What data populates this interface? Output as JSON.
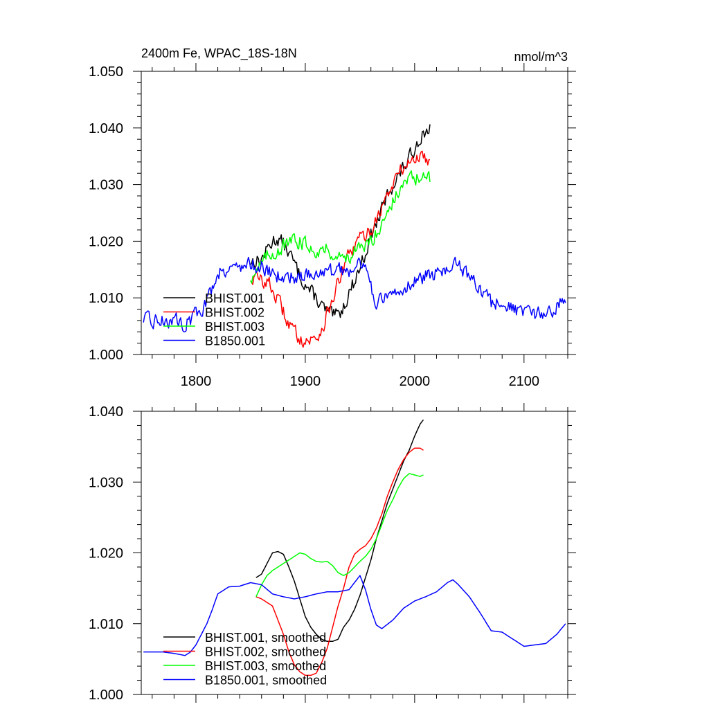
{
  "chart_data": [
    {
      "type": "line",
      "title": "2400m Fe, WPAC_18S-18N",
      "units_label": "nmol/m^3",
      "xlim": [
        1750,
        2140
      ],
      "ylim": [
        1.0,
        1.05
      ],
      "x_ticks": [
        1800,
        1900,
        2000,
        2100
      ],
      "x_tick_labels": [
        "1800",
        "1900",
        "2000",
        "2100"
      ],
      "y_ticks": [
        1.0,
        1.01,
        1.02,
        1.03,
        1.04,
        1.05
      ],
      "y_tick_labels": [
        "1.000",
        "1.010",
        "1.020",
        "1.030",
        "1.040",
        "1.050"
      ],
      "grid": false,
      "legend_position": "bottom-left",
      "series": [
        {
          "name": "BHIST.001",
          "color": "#000000",
          "noise": 0.0012,
          "x": [
            1850,
            1855,
            1860,
            1865,
            1870,
            1875,
            1880,
            1885,
            1890,
            1895,
            1900,
            1905,
            1910,
            1915,
            1920,
            1925,
            1930,
            1935,
            1940,
            1945,
            1950,
            1955,
            1960,
            1965,
            1970,
            1975,
            1980,
            1985,
            1990,
            1995,
            2000,
            2005,
            2010,
            2014
          ],
          "y": [
            1.0165,
            1.0165,
            1.0168,
            1.0185,
            1.02,
            1.0205,
            1.0195,
            1.018,
            1.016,
            1.014,
            1.0125,
            1.011,
            1.01,
            1.0085,
            1.0075,
            1.0068,
            1.0068,
            1.0085,
            1.011,
            1.013,
            1.0155,
            1.018,
            1.021,
            1.023,
            1.0255,
            1.028,
            1.03,
            1.0315,
            1.033,
            1.0345,
            1.0365,
            1.0385,
            1.0395,
            1.04
          ]
        },
        {
          "name": "BHIST.002",
          "color": "#ff0000",
          "noise": 0.0012,
          "x": [
            1850,
            1855,
            1860,
            1865,
            1870,
            1875,
            1880,
            1885,
            1890,
            1895,
            1900,
            1905,
            1910,
            1915,
            1920,
            1925,
            1930,
            1935,
            1940,
            1945,
            1950,
            1955,
            1960,
            1965,
            1970,
            1975,
            1980,
            1985,
            1990,
            1995,
            2000,
            2005,
            2010,
            2014
          ],
          "y": [
            1.0135,
            1.0135,
            1.013,
            1.013,
            1.0115,
            1.0095,
            1.0075,
            1.0055,
            1.004,
            1.003,
            1.0025,
            1.0025,
            1.003,
            1.0045,
            1.007,
            1.01,
            1.0125,
            1.015,
            1.0175,
            1.019,
            1.0205,
            1.021,
            1.022,
            1.024,
            1.026,
            1.028,
            1.03,
            1.032,
            1.033,
            1.034,
            1.0345,
            1.035,
            1.0348,
            1.0345
          ]
        },
        {
          "name": "BHIST.003",
          "color": "#00ff00",
          "noise": 0.0012,
          "x": [
            1850,
            1855,
            1860,
            1865,
            1870,
            1875,
            1880,
            1885,
            1890,
            1895,
            1900,
            1905,
            1910,
            1915,
            1920,
            1925,
            1930,
            1935,
            1940,
            1945,
            1950,
            1955,
            1960,
            1965,
            1970,
            1975,
            1980,
            1985,
            1990,
            1995,
            2000,
            2005,
            2010,
            2014
          ],
          "y": [
            1.0135,
            1.015,
            1.016,
            1.0172,
            1.018,
            1.0185,
            1.019,
            1.0195,
            1.02,
            1.02,
            1.0195,
            1.019,
            1.0185,
            1.0185,
            1.0185,
            1.018,
            1.0172,
            1.017,
            1.0175,
            1.018,
            1.0185,
            1.019,
            1.02,
            1.0215,
            1.0235,
            1.0255,
            1.027,
            1.0285,
            1.03,
            1.031,
            1.0312,
            1.031,
            1.0308,
            1.031
          ]
        },
        {
          "name": "B1850.001",
          "color": "#0000ff",
          "noise": 0.0012,
          "x": [
            1752,
            1760,
            1770,
            1780,
            1790,
            1800,
            1805,
            1810,
            1815,
            1820,
            1830,
            1840,
            1850,
            1860,
            1870,
            1875,
            1880,
            1890,
            1900,
            1910,
            1920,
            1930,
            1940,
            1945,
            1950,
            1955,
            1960,
            1965,
            1970,
            1980,
            1990,
            2000,
            2010,
            2020,
            2030,
            2035,
            2040,
            2050,
            2060,
            2070,
            2080,
            2090,
            2100,
            2110,
            2120,
            2130,
            2138
          ],
          "y": [
            1.006,
            1.006,
            1.006,
            1.006,
            1.0055,
            1.007,
            1.008,
            1.0095,
            1.012,
            1.0145,
            1.0155,
            1.0155,
            1.016,
            1.0155,
            1.014,
            1.014,
            1.0135,
            1.0138,
            1.014,
            1.0145,
            1.0145,
            1.0147,
            1.015,
            1.016,
            1.0168,
            1.0145,
            1.012,
            1.0095,
            1.0093,
            1.0105,
            1.012,
            1.013,
            1.0138,
            1.0143,
            1.0155,
            1.016,
            1.0155,
            1.0135,
            1.0115,
            1.009,
            1.009,
            1.008,
            1.007,
            1.0068,
            1.0073,
            1.0085,
            1.01
          ]
        }
      ]
    },
    {
      "type": "line",
      "title": "",
      "xlim": [
        1750,
        2140
      ],
      "ylim": [
        1.0,
        1.04
      ],
      "x_ticks": [
        1800,
        1900,
        2000,
        2100
      ],
      "x_tick_labels": [],
      "y_ticks": [
        1.0,
        1.01,
        1.02,
        1.03,
        1.04
      ],
      "y_tick_labels": [
        "1.000",
        "1.010",
        "1.020",
        "1.030",
        "1.040"
      ],
      "grid": false,
      "legend_position": "bottom-left",
      "series": [
        {
          "name": "BHIST.001, smoothed",
          "color": "#000000",
          "noise": 0,
          "x": [
            1855,
            1860,
            1865,
            1870,
            1875,
            1880,
            1885,
            1890,
            1895,
            1900,
            1905,
            1910,
            1915,
            1920,
            1925,
            1930,
            1935,
            1940,
            1945,
            1950,
            1955,
            1960,
            1965,
            1970,
            1975,
            1980,
            1985,
            1990,
            1995,
            2000,
            2005,
            2008
          ],
          "y": [
            1.0165,
            1.017,
            1.0185,
            1.02,
            1.0202,
            1.0198,
            1.018,
            1.016,
            1.0135,
            1.011,
            1.0095,
            1.0085,
            1.0078,
            1.0075,
            1.0075,
            1.0078,
            1.0095,
            1.0105,
            1.012,
            1.014,
            1.0165,
            1.019,
            1.022,
            1.0245,
            1.027,
            1.029,
            1.031,
            1.033,
            1.0345,
            1.0365,
            1.0382,
            1.0388
          ]
        },
        {
          "name": "BHIST.002, smoothed",
          "color": "#ff0000",
          "noise": 0,
          "x": [
            1855,
            1860,
            1865,
            1870,
            1875,
            1880,
            1885,
            1890,
            1895,
            1900,
            1905,
            1910,
            1915,
            1920,
            1925,
            1930,
            1935,
            1940,
            1945,
            1950,
            1955,
            1960,
            1965,
            1970,
            1975,
            1980,
            1985,
            1990,
            1995,
            2000,
            2005,
            2008
          ],
          "y": [
            1.0138,
            1.0135,
            1.013,
            1.0125,
            1.0105,
            1.0085,
            1.006,
            1.0042,
            1.0032,
            1.0027,
            1.0027,
            1.003,
            1.0045,
            1.0065,
            1.0095,
            1.0125,
            1.015,
            1.018,
            1.0198,
            1.0205,
            1.021,
            1.022,
            1.0235,
            1.0255,
            1.028,
            1.03,
            1.0318,
            1.0332,
            1.0342,
            1.0348,
            1.0348,
            1.0345
          ]
        },
        {
          "name": "BHIST.003, smoothed",
          "color": "#00ff00",
          "noise": 0,
          "x": [
            1855,
            1860,
            1865,
            1870,
            1875,
            1880,
            1885,
            1890,
            1895,
            1900,
            1905,
            1910,
            1915,
            1920,
            1925,
            1930,
            1935,
            1940,
            1945,
            1950,
            1955,
            1960,
            1965,
            1970,
            1975,
            1980,
            1985,
            1990,
            1995,
            2000,
            2005,
            2008
          ],
          "y": [
            1.0138,
            1.0155,
            1.0168,
            1.0175,
            1.018,
            1.0185,
            1.019,
            1.0195,
            1.02,
            1.0198,
            1.0192,
            1.0188,
            1.0187,
            1.0188,
            1.0182,
            1.0172,
            1.0168,
            1.0172,
            1.018,
            1.0188,
            1.0195,
            1.0205,
            1.022,
            1.024,
            1.026,
            1.0275,
            1.0292,
            1.0305,
            1.0312,
            1.031,
            1.0308,
            1.031
          ]
        },
        {
          "name": "B1850.001, smoothed",
          "color": "#0000ff",
          "noise": 0,
          "x": [
            1752,
            1760,
            1770,
            1780,
            1790,
            1795,
            1800,
            1805,
            1810,
            1815,
            1820,
            1830,
            1840,
            1850,
            1860,
            1870,
            1880,
            1890,
            1900,
            1910,
            1920,
            1930,
            1940,
            1945,
            1950,
            1955,
            1960,
            1965,
            1970,
            1980,
            1990,
            2000,
            2010,
            2020,
            2030,
            2035,
            2040,
            2050,
            2060,
            2070,
            2080,
            2090,
            2100,
            2110,
            2120,
            2130,
            2138
          ],
          "y": [
            1.006,
            1.006,
            1.006,
            1.0058,
            1.0055,
            1.006,
            1.007,
            1.0085,
            1.01,
            1.012,
            1.0142,
            1.0152,
            1.0153,
            1.0158,
            1.0155,
            1.0142,
            1.0138,
            1.0135,
            1.0138,
            1.0142,
            1.0145,
            1.0145,
            1.0148,
            1.0158,
            1.0168,
            1.0148,
            1.012,
            1.0098,
            1.0093,
            1.0105,
            1.0122,
            1.0132,
            1.0138,
            1.0145,
            1.0158,
            1.0162,
            1.0155,
            1.0138,
            1.0115,
            1.009,
            1.0088,
            1.0078,
            1.0068,
            1.007,
            1.0072,
            1.0085,
            1.01
          ]
        }
      ]
    }
  ]
}
